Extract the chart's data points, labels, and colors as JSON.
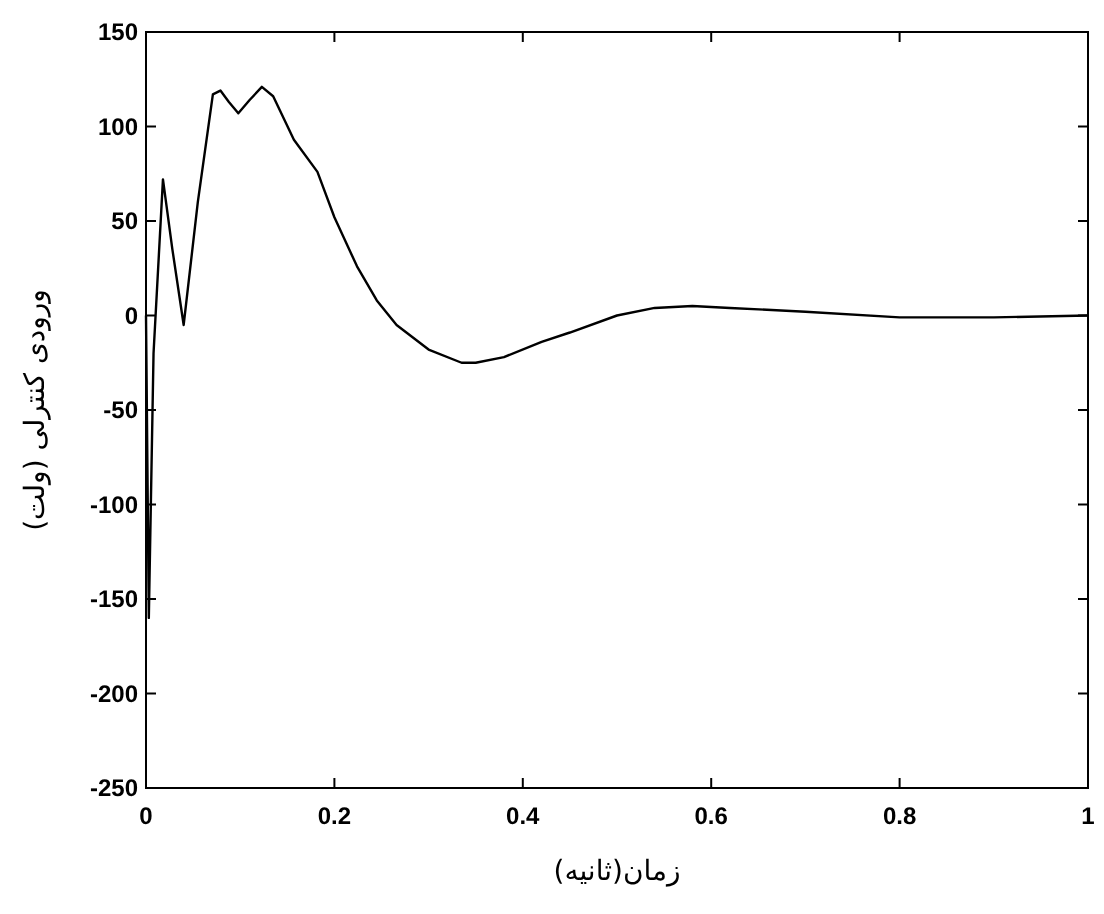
{
  "chart_data": {
    "type": "line",
    "xlabel": "زمان(ثانیه)",
    "ylabel": "ورودی کنترلی (ولت)",
    "x": [
      0,
      0.003,
      0.008,
      0.018,
      0.028,
      0.04,
      0.055,
      0.071,
      0.079,
      0.088,
      0.098,
      0.11,
      0.123,
      0.135,
      0.157,
      0.182,
      0.2,
      0.224,
      0.245,
      0.266,
      0.3,
      0.335,
      0.35,
      0.38,
      0.42,
      0.45,
      0.5,
      0.54,
      0.58,
      0.62,
      0.7,
      0.8,
      0.9,
      1.0
    ],
    "series": [
      {
        "color": "#000000",
        "values": [
          0,
          -160,
          -20,
          72,
          35,
          -5,
          60,
          117,
          119,
          113,
          107,
          114,
          121,
          116,
          93,
          76,
          52,
          26,
          8,
          -5,
          -18,
          -25,
          -25,
          -22,
          -14,
          -9,
          0,
          4,
          5,
          4,
          2,
          -1,
          -1,
          0
        ]
      }
    ],
    "xlim": [
      0,
      1
    ],
    "ylim": [
      -250,
      150
    ],
    "xticks": [
      0,
      0.2,
      0.4,
      0.6,
      0.8,
      1
    ],
    "yticks": [
      -250,
      -200,
      -150,
      -100,
      -50,
      0,
      50,
      100,
      150
    ],
    "grid": false
  }
}
